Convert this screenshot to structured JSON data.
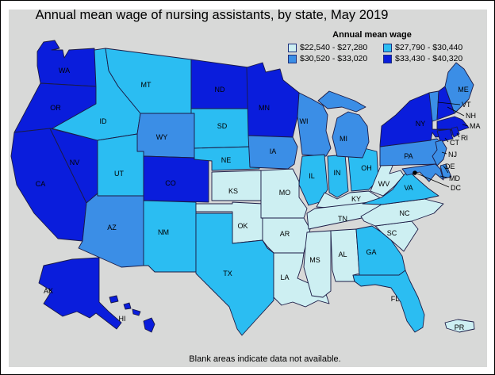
{
  "title": "Annual mean wage of nursing assistants, by state, May 2019",
  "legend": {
    "title": "Annual mean wage",
    "items": [
      {
        "range": "$22,540 - $27,280",
        "color": "#cdeff2"
      },
      {
        "range": "$27,790 - $30,440",
        "color": "#2bbdf2"
      },
      {
        "range": "$30,520 - $33,020",
        "color": "#3b8ee6"
      },
      {
        "range": "$33,430 - $40,320",
        "color": "#0a1ddc"
      }
    ]
  },
  "footnote": "Blank areas indicate data not available.",
  "map": {
    "states": [
      {
        "abbr": "WA",
        "category": 3
      },
      {
        "abbr": "OR",
        "category": 3
      },
      {
        "abbr": "CA",
        "category": 3
      },
      {
        "abbr": "NV",
        "category": 3
      },
      {
        "abbr": "ID",
        "category": 1
      },
      {
        "abbr": "MT",
        "category": 1
      },
      {
        "abbr": "WY",
        "category": 2
      },
      {
        "abbr": "UT",
        "category": 1
      },
      {
        "abbr": "CO",
        "category": 3
      },
      {
        "abbr": "AZ",
        "category": 2
      },
      {
        "abbr": "NM",
        "category": 1
      },
      {
        "abbr": "ND",
        "category": 3
      },
      {
        "abbr": "SD",
        "category": 1
      },
      {
        "abbr": "NE",
        "category": 1
      },
      {
        "abbr": "KS",
        "category": 0
      },
      {
        "abbr": "OK",
        "category": 0
      },
      {
        "abbr": "TX",
        "category": 1
      },
      {
        "abbr": "MN",
        "category": 3
      },
      {
        "abbr": "IA",
        "category": 2
      },
      {
        "abbr": "MO",
        "category": 0
      },
      {
        "abbr": "AR",
        "category": 0
      },
      {
        "abbr": "LA",
        "category": 0
      },
      {
        "abbr": "WI",
        "category": 2
      },
      {
        "abbr": "IL",
        "category": 1
      },
      {
        "abbr": "IN",
        "category": 1
      },
      {
        "abbr": "OH",
        "category": 1
      },
      {
        "abbr": "MI",
        "category": 2
      },
      {
        "abbr": "KY",
        "category": 0
      },
      {
        "abbr": "TN",
        "category": 0
      },
      {
        "abbr": "MS",
        "category": 0
      },
      {
        "abbr": "AL",
        "category": 0
      },
      {
        "abbr": "GA",
        "category": 1
      },
      {
        "abbr": "FL",
        "category": 1
      },
      {
        "abbr": "SC",
        "category": 0
      },
      {
        "abbr": "NC",
        "category": 0
      },
      {
        "abbr": "VA",
        "category": 1
      },
      {
        "abbr": "WV",
        "category": 0
      },
      {
        "abbr": "PA",
        "category": 2
      },
      {
        "abbr": "NY",
        "category": 3
      },
      {
        "abbr": "VT",
        "category": 2
      },
      {
        "abbr": "NH",
        "category": 3
      },
      {
        "abbr": "ME",
        "category": 2
      },
      {
        "abbr": "MA",
        "category": 3
      },
      {
        "abbr": "RI",
        "category": 3
      },
      {
        "abbr": "CT",
        "category": 3
      },
      {
        "abbr": "NJ",
        "category": 2
      },
      {
        "abbr": "DE",
        "category": 2
      },
      {
        "abbr": "MD",
        "category": 2
      },
      {
        "abbr": "AK",
        "category": 3
      },
      {
        "abbr": "HI",
        "category": 3
      },
      {
        "abbr": "PR",
        "category": 0
      }
    ],
    "callouts": [
      {
        "abbr": "VT"
      },
      {
        "abbr": "NH"
      },
      {
        "abbr": "MA"
      },
      {
        "abbr": "RI"
      },
      {
        "abbr": "CT"
      },
      {
        "abbr": "NJ"
      },
      {
        "abbr": "DE"
      },
      {
        "abbr": "MD"
      },
      {
        "abbr": "DC",
        "marker": "dot"
      }
    ]
  }
}
